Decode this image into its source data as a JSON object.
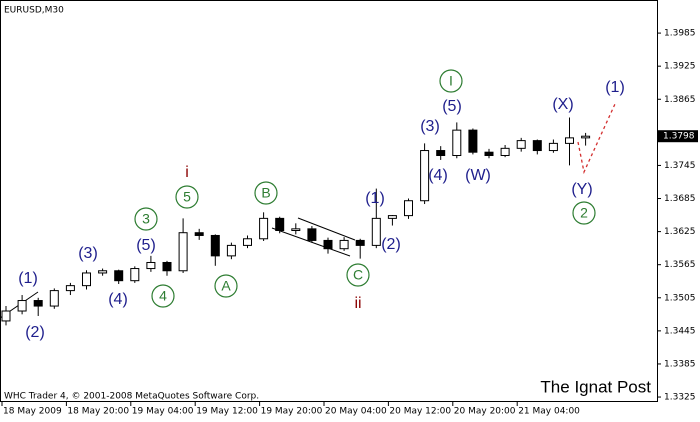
{
  "chart_data": {
    "type": "candlestick",
    "title": "EURUSD,M30",
    "footer": "WHC Trader 4, © 2001-2008 MetaQuotes Software Corp.",
    "watermark": "The Ignat Post",
    "categories": [
      "18 May 2009",
      null,
      null,
      null,
      "18 May 20:00",
      null,
      null,
      null,
      "19 May 04:00",
      null,
      null,
      null,
      "19 May 12:00",
      null,
      null,
      null,
      "19 May 20:00",
      null,
      null,
      null,
      "20 May 04:00",
      null,
      null,
      null,
      "20 May 12:00",
      null,
      null,
      null,
      "20 May 20:00",
      null,
      null,
      null,
      "21 May 04:00",
      null,
      null,
      null,
      null
    ],
    "open": [
      1.3463,
      1.3481,
      1.35,
      1.349,
      1.3518,
      1.3527,
      1.355,
      1.3554,
      1.3536,
      1.3558,
      1.3569,
      1.3554,
      1.3623,
      1.3618,
      1.3581,
      1.36,
      1.3612,
      1.3649,
      1.3627,
      1.363,
      1.3609,
      1.3594,
      1.3609,
      1.36,
      1.3649,
      1.3654,
      1.3681,
      1.3772,
      1.3763,
      1.3809,
      1.3769,
      1.3763,
      1.3776,
      1.379,
      1.3772,
      1.3785,
      1.3795
    ],
    "high": [
      1.349,
      1.351,
      1.3505,
      1.3522,
      1.3532,
      1.3555,
      1.3558,
      1.3556,
      1.3562,
      1.3581,
      1.3572,
      1.3649,
      1.363,
      1.362,
      1.3605,
      1.3618,
      1.366,
      1.3652,
      1.364,
      1.3635,
      1.3614,
      1.3615,
      1.3612,
      1.3703,
      1.3655,
      1.3685,
      1.3785,
      1.378,
      1.3823,
      1.3812,
      1.3775,
      1.3782,
      1.3795,
      1.3792,
      1.3792,
      1.3832,
      1.3804
    ],
    "low": [
      1.3455,
      1.3475,
      1.3472,
      1.3485,
      1.351,
      1.352,
      1.3545,
      1.353,
      1.3532,
      1.3552,
      1.3545,
      1.355,
      1.361,
      1.3563,
      1.3575,
      1.3595,
      1.3608,
      1.3622,
      1.362,
      1.3605,
      1.3585,
      1.359,
      1.3576,
      1.3595,
      1.3636,
      1.3648,
      1.3675,
      1.3755,
      1.3758,
      1.3765,
      1.3758,
      1.376,
      1.377,
      1.3765,
      1.3768,
      1.3745,
      1.3781
    ],
    "close": [
      1.3481,
      1.35,
      1.349,
      1.3518,
      1.3527,
      1.355,
      1.3554,
      1.3536,
      1.3558,
      1.3569,
      1.3554,
      1.3623,
      1.3618,
      1.3581,
      1.36,
      1.3612,
      1.3649,
      1.3627,
      1.363,
      1.3609,
      1.3594,
      1.3609,
      1.36,
      1.3649,
      1.3654,
      1.3681,
      1.3772,
      1.3763,
      1.3809,
      1.3769,
      1.3763,
      1.3776,
      1.379,
      1.3772,
      1.3785,
      1.3795,
      1.3798
    ],
    "colors": {
      "up": "#ffffff",
      "down": "#000000"
    },
    "last_price": 1.3798,
    "ylim": [
      1.3316,
      1.4045
    ],
    "yticks": [
      1.3325,
      1.3385,
      1.3445,
      1.3505,
      1.3565,
      1.3625,
      1.3685,
      1.3745,
      1.3865,
      1.3925,
      1.3985
    ],
    "annotations": [
      "(1)",
      "(2)",
      "(3)",
      "(4)",
      "(5)",
      "3",
      "4",
      "5",
      "i",
      "A",
      "B",
      "C",
      "ii",
      "(1)",
      "(2)",
      "(3)",
      "(4)",
      "(5)",
      "I",
      "(W)",
      "(X)",
      "(Y)",
      "2",
      "(1)"
    ]
  }
}
